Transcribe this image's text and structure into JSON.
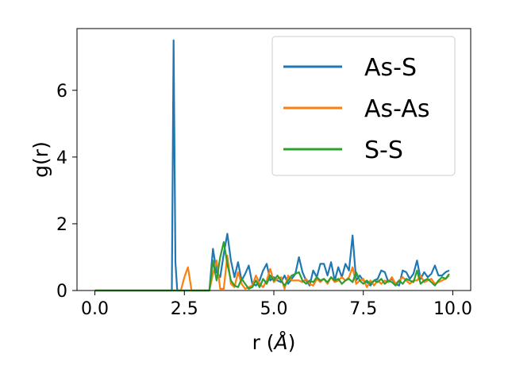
{
  "chart_data": {
    "type": "line",
    "xlabel_main": "r (",
    "xlabel_unit": "Å",
    "xlabel_close": ")",
    "ylabel": "g(r)",
    "xlim": [
      -0.5,
      10.5
    ],
    "ylim": [
      0,
      7.85
    ],
    "xticks": [
      0.0,
      2.5,
      5.0,
      7.5,
      10.0
    ],
    "xtick_labels": [
      "0.0",
      "2.5",
      "5.0",
      "7.5",
      "10.0"
    ],
    "yticks": [
      0,
      2,
      4,
      6
    ],
    "ytick_labels": [
      "0",
      "2",
      "4",
      "6"
    ],
    "grid": false,
    "legend_position": "upper-right",
    "series": [
      {
        "name": "As-S",
        "color": "#1f77b4",
        "x": [
          0.0,
          0.1,
          0.2,
          0.3,
          0.4,
          0.5,
          0.6,
          0.7,
          0.8,
          0.9,
          1.0,
          1.1,
          1.2,
          1.3,
          1.4,
          1.5,
          1.6,
          1.7,
          1.8,
          1.9,
          2.0,
          2.1,
          2.15,
          2.2,
          2.25,
          2.3,
          2.4,
          2.5,
          2.6,
          2.7,
          2.8,
          2.9,
          3.0,
          3.1,
          3.2,
          3.3,
          3.4,
          3.5,
          3.6,
          3.7,
          3.8,
          3.9,
          4.0,
          4.1,
          4.2,
          4.3,
          4.4,
          4.5,
          4.6,
          4.7,
          4.8,
          4.9,
          5.0,
          5.1,
          5.2,
          5.3,
          5.4,
          5.5,
          5.6,
          5.7,
          5.8,
          5.9,
          6.0,
          6.1,
          6.2,
          6.3,
          6.4,
          6.5,
          6.6,
          6.7,
          6.8,
          6.9,
          7.0,
          7.1,
          7.2,
          7.3,
          7.4,
          7.5,
          7.6,
          7.7,
          7.8,
          7.9,
          8.0,
          8.1,
          8.2,
          8.3,
          8.4,
          8.5,
          8.6,
          8.7,
          8.8,
          8.9,
          9.0,
          9.1,
          9.2,
          9.3,
          9.4,
          9.5,
          9.6,
          9.7,
          9.8,
          9.9
        ],
        "y": [
          0,
          0,
          0,
          0,
          0,
          0,
          0,
          0,
          0,
          0,
          0,
          0,
          0,
          0,
          0,
          0,
          0,
          0,
          0,
          0,
          0,
          0,
          0,
          7.5,
          0.85,
          0,
          0,
          0,
          0,
          0,
          0,
          0,
          0,
          0,
          0,
          1.25,
          0.55,
          0.4,
          1.1,
          1.7,
          0.9,
          0.4,
          0.85,
          0.3,
          0.5,
          0.75,
          0.2,
          0.15,
          0.3,
          0.6,
          0.8,
          0.3,
          0.4,
          0.3,
          0.25,
          0.45,
          0.2,
          0.35,
          0.5,
          1.0,
          0.55,
          0.3,
          0.15,
          0.6,
          0.4,
          0.8,
          0.8,
          0.45,
          0.85,
          0.3,
          0.7,
          0.4,
          0.8,
          0.6,
          1.65,
          0.3,
          0.45,
          0.3,
          0.25,
          0.15,
          0.3,
          0.35,
          0.6,
          0.55,
          0.25,
          0.35,
          0.2,
          0.15,
          0.6,
          0.55,
          0.35,
          0.5,
          0.9,
          0.35,
          0.55,
          0.4,
          0.5,
          0.75,
          0.45,
          0.45,
          0.55,
          0.6
        ]
      },
      {
        "name": "As-As",
        "color": "#ff7f0e",
        "x": [
          0.0,
          0.5,
          1.0,
          1.5,
          2.0,
          2.4,
          2.5,
          2.55,
          2.6,
          2.7,
          2.8,
          2.9,
          3.0,
          3.1,
          3.2,
          3.3,
          3.4,
          3.5,
          3.6,
          3.7,
          3.8,
          3.9,
          4.0,
          4.1,
          4.2,
          4.3,
          4.4,
          4.5,
          4.6,
          4.7,
          4.8,
          4.9,
          5.0,
          5.1,
          5.2,
          5.3,
          5.4,
          5.5,
          5.6,
          5.7,
          5.8,
          5.9,
          6.0,
          6.1,
          6.2,
          6.3,
          6.4,
          6.5,
          6.6,
          6.7,
          6.8,
          6.9,
          7.0,
          7.1,
          7.2,
          7.3,
          7.4,
          7.5,
          7.6,
          7.7,
          7.8,
          7.9,
          8.0,
          8.1,
          8.2,
          8.3,
          8.4,
          8.5,
          8.6,
          8.7,
          8.8,
          8.9,
          9.0,
          9.1,
          9.2,
          9.3,
          9.4,
          9.5,
          9.6,
          9.7,
          9.8,
          9.9
        ],
        "y": [
          0,
          0,
          0,
          0,
          0,
          0,
          0.4,
          0.55,
          0.7,
          0,
          0,
          0,
          0,
          0,
          0,
          0.5,
          0.9,
          0.05,
          0.05,
          1.05,
          0.2,
          0.1,
          0.55,
          0.2,
          0.05,
          0.1,
          0.15,
          0.45,
          0.2,
          0.1,
          0.3,
          0.65,
          0.25,
          0.35,
          0.4,
          0.05,
          0.45,
          0.3,
          0.3,
          0.3,
          0.25,
          0.35,
          0.2,
          0.15,
          0.35,
          0.25,
          0.35,
          0.2,
          0.4,
          0.25,
          0.3,
          0.4,
          0.3,
          0.4,
          0.7,
          0.2,
          0.3,
          0.35,
          0.1,
          0.3,
          0.15,
          0.3,
          0.2,
          0.3,
          0.25,
          0.4,
          0.2,
          0.3,
          0.4,
          0.3,
          0.2,
          0.3,
          0.3,
          0.45,
          0.25,
          0.3,
          0.35,
          0.2,
          0.25,
          0.3,
          0.35,
          0.45
        ]
      },
      {
        "name": "S-S",
        "color": "#2ca02c",
        "x": [
          0.0,
          0.5,
          1.0,
          1.5,
          2.0,
          2.5,
          3.0,
          3.2,
          3.3,
          3.4,
          3.5,
          3.6,
          3.7,
          3.8,
          3.9,
          4.0,
          4.1,
          4.2,
          4.3,
          4.4,
          4.5,
          4.6,
          4.7,
          4.8,
          4.9,
          5.0,
          5.1,
          5.2,
          5.3,
          5.4,
          5.5,
          5.6,
          5.7,
          5.8,
          5.9,
          6.0,
          6.1,
          6.2,
          6.3,
          6.4,
          6.5,
          6.6,
          6.7,
          6.8,
          6.9,
          7.0,
          7.1,
          7.2,
          7.3,
          7.4,
          7.5,
          7.6,
          7.7,
          7.8,
          7.9,
          8.0,
          8.1,
          8.2,
          8.3,
          8.4,
          8.5,
          8.6,
          8.7,
          8.8,
          8.9,
          9.0,
          9.1,
          9.2,
          9.3,
          9.4,
          9.5,
          9.6,
          9.7,
          9.8,
          9.9
        ],
        "y": [
          0,
          0,
          0,
          0,
          0,
          0,
          0,
          0,
          0.9,
          0.3,
          1.0,
          1.45,
          0.8,
          0.3,
          0.15,
          0.1,
          0.35,
          0.2,
          0.05,
          0.1,
          0.3,
          0.1,
          0.35,
          0.2,
          0.45,
          0.3,
          0.45,
          0.3,
          0.15,
          0.3,
          0.45,
          0.5,
          0.55,
          0.3,
          0.2,
          0.3,
          0.25,
          0.4,
          0.3,
          0.35,
          0.25,
          0.4,
          0.3,
          0.35,
          0.2,
          0.3,
          0.35,
          0.25,
          0.55,
          0.3,
          0.2,
          0.3,
          0.2,
          0.3,
          0.25,
          0.35,
          0.2,
          0.3,
          0.25,
          0.15,
          0.3,
          0.2,
          0.35,
          0.3,
          0.25,
          0.6,
          0.2,
          0.3,
          0.35,
          0.25,
          0.15,
          0.3,
          0.4,
          0.35,
          0.5
        ]
      }
    ]
  }
}
